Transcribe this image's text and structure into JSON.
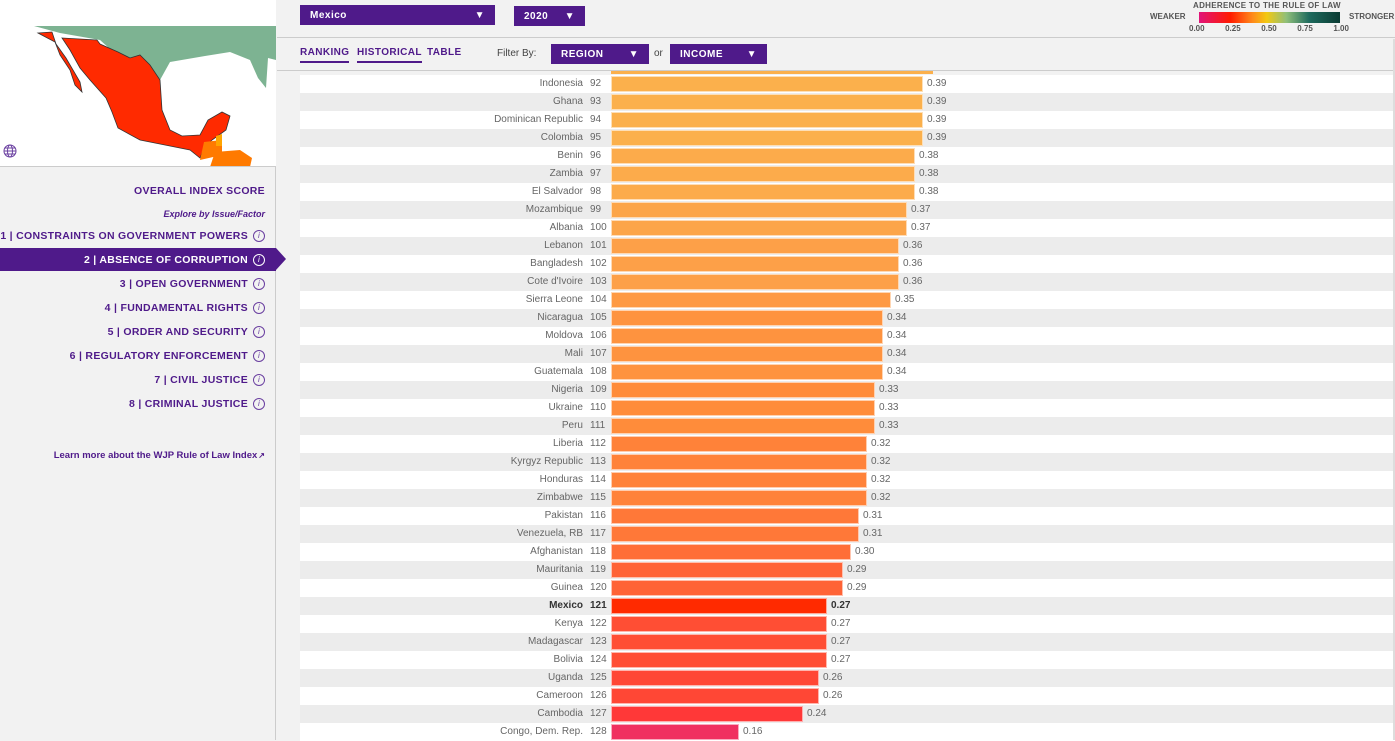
{
  "header": {
    "country": "Mexico",
    "year": "2020"
  },
  "legend": {
    "title": "ADHERENCE TO THE RULE OF LAW",
    "weaker": "WEAKER",
    "stronger": "STRONGER",
    "ticks": [
      "0.00",
      "0.25",
      "0.50",
      "0.75",
      "1.00"
    ],
    "colors": [
      "#e0147a",
      "#ff1a00",
      "#ff8a1a",
      "#f2c812",
      "#8fbf7a",
      "#1f6b5e",
      "#0a3b33"
    ]
  },
  "tabs": [
    {
      "label": "RANKING"
    },
    {
      "label": "HISTORICAL"
    },
    {
      "label": "TABLE"
    }
  ],
  "filter": {
    "label": "Filter By:",
    "region": "REGION",
    "or": "or",
    "income": "INCOME"
  },
  "sidebar": {
    "overall": "OVERALL INDEX SCORE",
    "explore": "Explore by Issue/Factor",
    "items": [
      {
        "label": "1 | CONSTRAINTS ON GOVERNMENT POWERS"
      },
      {
        "label": "2 | ABSENCE OF CORRUPTION",
        "active": true
      },
      {
        "label": "3 | OPEN GOVERNMENT"
      },
      {
        "label": "4 | FUNDAMENTAL RIGHTS"
      },
      {
        "label": "5 | ORDER AND SECURITY"
      },
      {
        "label": "6 | REGULATORY ENFORCEMENT"
      },
      {
        "label": "7 | CIVIL JUSTICE"
      },
      {
        "label": "8 | CRIMINAL JUSTICE"
      }
    ],
    "learn_more": "Learn more about the WJP Rule of Law Index"
  },
  "map_colors": {
    "selected": "#ff2a00",
    "usa": "#7db392",
    "neighbor": "#ff7a00"
  },
  "chart_data": {
    "type": "bar",
    "orientation": "horizontal",
    "highlight": "Mexico",
    "xlim": [
      0,
      1
    ],
    "rows": [
      {
        "country": "Indonesia",
        "rank": 92,
        "score": 0.39
      },
      {
        "country": "Ghana",
        "rank": 93,
        "score": 0.39
      },
      {
        "country": "Dominican Republic",
        "rank": 94,
        "score": 0.39
      },
      {
        "country": "Colombia",
        "rank": 95,
        "score": 0.39
      },
      {
        "country": "Benin",
        "rank": 96,
        "score": 0.38
      },
      {
        "country": "Zambia",
        "rank": 97,
        "score": 0.38
      },
      {
        "country": "El Salvador",
        "rank": 98,
        "score": 0.38
      },
      {
        "country": "Mozambique",
        "rank": 99,
        "score": 0.37
      },
      {
        "country": "Albania",
        "rank": 100,
        "score": 0.37
      },
      {
        "country": "Lebanon",
        "rank": 101,
        "score": 0.36
      },
      {
        "country": "Bangladesh",
        "rank": 102,
        "score": 0.36
      },
      {
        "country": "Cote d'Ivoire",
        "rank": 103,
        "score": 0.36
      },
      {
        "country": "Sierra Leone",
        "rank": 104,
        "score": 0.35
      },
      {
        "country": "Nicaragua",
        "rank": 105,
        "score": 0.34
      },
      {
        "country": "Moldova",
        "rank": 106,
        "score": 0.34
      },
      {
        "country": "Mali",
        "rank": 107,
        "score": 0.34
      },
      {
        "country": "Guatemala",
        "rank": 108,
        "score": 0.34
      },
      {
        "country": "Nigeria",
        "rank": 109,
        "score": 0.33
      },
      {
        "country": "Ukraine",
        "rank": 110,
        "score": 0.33
      },
      {
        "country": "Peru",
        "rank": 111,
        "score": 0.33
      },
      {
        "country": "Liberia",
        "rank": 112,
        "score": 0.32
      },
      {
        "country": "Kyrgyz Republic",
        "rank": 113,
        "score": 0.32
      },
      {
        "country": "Honduras",
        "rank": 114,
        "score": 0.32
      },
      {
        "country": "Zimbabwe",
        "rank": 115,
        "score": 0.32
      },
      {
        "country": "Pakistan",
        "rank": 116,
        "score": 0.31
      },
      {
        "country": "Venezuela, RB",
        "rank": 117,
        "score": 0.31
      },
      {
        "country": "Afghanistan",
        "rank": 118,
        "score": 0.3
      },
      {
        "country": "Mauritania",
        "rank": 119,
        "score": 0.29
      },
      {
        "country": "Guinea",
        "rank": 120,
        "score": 0.29
      },
      {
        "country": "Mexico",
        "rank": 121,
        "score": 0.27
      },
      {
        "country": "Kenya",
        "rank": 122,
        "score": 0.27
      },
      {
        "country": "Madagascar",
        "rank": 123,
        "score": 0.27
      },
      {
        "country": "Bolivia",
        "rank": 124,
        "score": 0.27
      },
      {
        "country": "Uganda",
        "rank": 125,
        "score": 0.26
      },
      {
        "country": "Cameroon",
        "rank": 126,
        "score": 0.26
      },
      {
        "country": "Cambodia",
        "rank": 127,
        "score": 0.24
      },
      {
        "country": "Congo, Dem. Rep.",
        "rank": 128,
        "score": 0.16
      }
    ]
  }
}
